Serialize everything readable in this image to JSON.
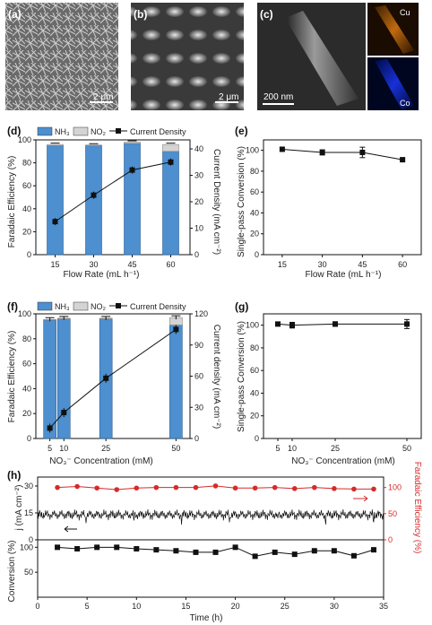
{
  "images": {
    "a": {
      "label": "(a)",
      "scale": "2 μm"
    },
    "b": {
      "label": "(b)",
      "scale": "2 μm"
    },
    "c": {
      "label": "(c)",
      "scale": "200 nm",
      "map1": "Cu",
      "map2": "Co"
    }
  },
  "chart_data": [
    {
      "id": "d",
      "label": "(d)",
      "type": "bar",
      "categories": [
        "15",
        "30",
        "45",
        "60"
      ],
      "xlabel": "Flow Rate (mL h⁻¹)",
      "ylabel": "Faradaic Efficiency (%)",
      "ylabel2": "Current Density (mA cm⁻²)",
      "ylim": [
        0,
        100
      ],
      "y_ticks": [
        "0",
        "20",
        "40",
        "60",
        "80",
        "100"
      ],
      "ylim2": [
        0,
        43.4
      ],
      "y2_ticks": [
        "0",
        "10",
        "20",
        "30",
        "40"
      ],
      "legend": [
        "NH₃",
        "NO₂",
        "Current Density"
      ],
      "series": [
        {
          "name": "NH₃",
          "values": [
            95,
            95,
            97,
            90
          ],
          "color": "#4d8fcf"
        },
        {
          "name": "NO₂",
          "values": [
            1,
            0.5,
            1,
            6
          ],
          "color": "#d4d4d4"
        },
        {
          "name": "Current Density",
          "values": [
            12.5,
            22.5,
            32,
            35
          ],
          "color": "#111111"
        }
      ]
    },
    {
      "id": "e",
      "label": "(e)",
      "type": "line",
      "x": [
        15,
        30,
        45,
        60
      ],
      "x_ticks": [
        "15",
        "30",
        "45",
        "60"
      ],
      "xlabel": "Flow Rate (mL h⁻¹)",
      "ylabel": "Single-pass Conversion (%)",
      "ylim": [
        0,
        110
      ],
      "y_ticks": [
        "0",
        "20",
        "40",
        "60",
        "80",
        "100"
      ],
      "series": [
        {
          "values": [
            101,
            98,
            98,
            91
          ],
          "errors": [
            1.5,
            2.5,
            5,
            1
          ]
        }
      ]
    },
    {
      "id": "f",
      "label": "(f)",
      "type": "bar",
      "x": [
        5,
        10,
        25,
        50
      ],
      "x_ticks": [
        "5",
        "10",
        "25",
        "50"
      ],
      "xlabel": "NO₃⁻ Concentration (mM)",
      "ylabel": "Faradaic Efficiency (%)",
      "ylabel2": "Current density (mA cm⁻²)",
      "ylim": [
        0,
        100
      ],
      "y_ticks": [
        "0",
        "20",
        "40",
        "60",
        "80",
        "100"
      ],
      "ylim2": [
        0,
        120
      ],
      "y2_ticks": [
        "0",
        "30",
        "60",
        "90",
        "120"
      ],
      "legend": [
        "NH₃",
        "NO₂",
        "Current Density"
      ],
      "series": [
        {
          "name": "NH₃",
          "values": [
            95,
            96,
            96,
            91
          ],
          "color": "#4d8fcf"
        },
        {
          "name": "NO₂",
          "values": [
            0.5,
            0.5,
            0.5,
            6
          ],
          "color": "#d4d4d4"
        },
        {
          "name": "Current Density",
          "values": [
            10,
            25,
            58,
            105
          ],
          "color": "#111111"
        }
      ]
    },
    {
      "id": "g",
      "label": "(g)",
      "type": "line",
      "x": [
        5,
        10,
        25,
        50
      ],
      "x_ticks": [
        "5",
        "10",
        "25",
        "50"
      ],
      "xlabel": "NO₃⁻ Concentration (mM)",
      "ylabel": "Single-pass Conversion (%)",
      "ylim": [
        0,
        110
      ],
      "y_ticks": [
        "0",
        "20",
        "40",
        "60",
        "80",
        "100"
      ],
      "series": [
        {
          "values": [
            101,
            100,
            101,
            101
          ],
          "errors": [
            1.5,
            2.5,
            2,
            4
          ]
        }
      ]
    },
    {
      "id": "h",
      "label": "(h)",
      "type": "line",
      "xlabel": "Time (h)",
      "x_ticks": [
        "0",
        "5",
        "10",
        "15",
        "20",
        "25",
        "30",
        "35"
      ],
      "xlim": [
        0,
        35
      ],
      "ylabel_top": "j (mA cm⁻²)",
      "ylabel_bottom": "Conversion (%)",
      "ylabel_right": "Faradaic Efficiency (%)",
      "top_ticks": [
        "0",
        "15",
        "30"
      ],
      "top_ylim": [
        0,
        35
      ],
      "right_ticks": [
        "0",
        "50",
        "100"
      ],
      "right_ylim": [
        0,
        120
      ],
      "bottom_ticks": [
        "0",
        "50",
        "100"
      ],
      "bottom_ylim": [
        0,
        115
      ],
      "current_mean": 14,
      "fe_series": {
        "x": [
          2,
          4,
          6,
          8,
          10,
          12,
          14,
          16,
          18,
          20,
          22,
          24,
          26,
          28,
          30,
          32,
          34
        ],
        "values": [
          100,
          102,
          99,
          96,
          99,
          100,
          100,
          100,
          103,
          99,
          99,
          100,
          98,
          100,
          98,
          97,
          97
        ],
        "color": "#d62b2b"
      },
      "conversion_series": {
        "x": [
          2,
          4,
          6,
          8,
          10,
          12,
          14,
          16,
          18,
          20,
          22,
          24,
          26,
          28,
          30,
          32,
          34
        ],
        "values": [
          100,
          97,
          100,
          100,
          97,
          95,
          93,
          90,
          90,
          100,
          82,
          90,
          86,
          93,
          93,
          83,
          95
        ],
        "color": "#111111"
      }
    }
  ]
}
